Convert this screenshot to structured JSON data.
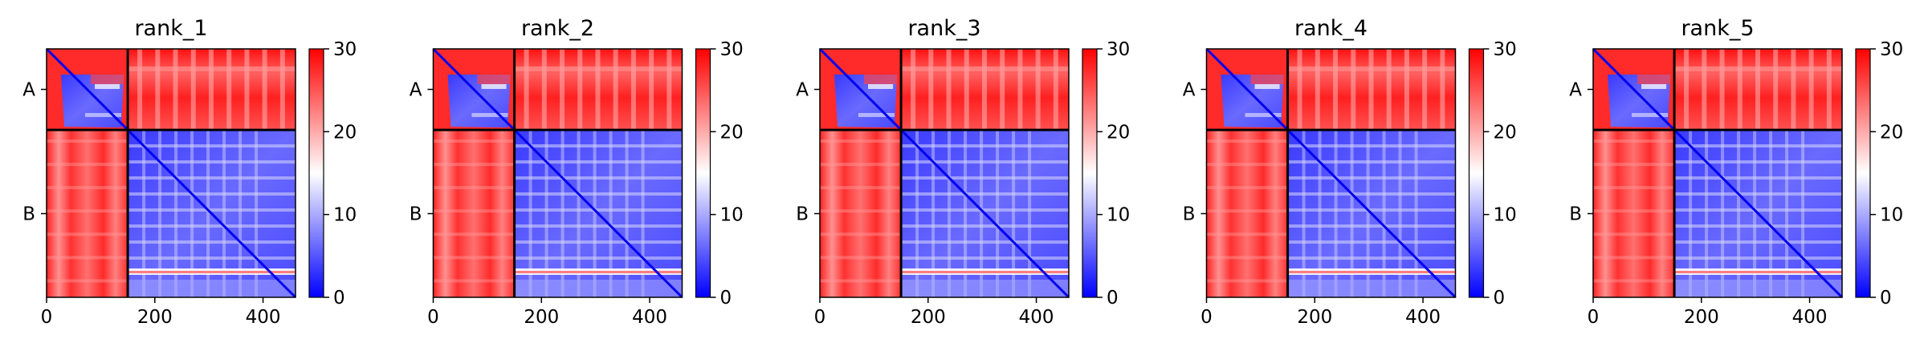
{
  "chart_data": {
    "type": "heatmap",
    "colorbar": {
      "ticks": [
        0,
        10,
        20,
        30
      ],
      "range": [
        0,
        30
      ],
      "colormap": "bwr",
      "colors": {
        "low": "#0000ff",
        "mid": "#ffffff",
        "high": "#ff0000"
      }
    },
    "x_ticks": [
      0,
      200,
      400
    ],
    "x_range": [
      0,
      460
    ],
    "chain_boundary": 150,
    "chain_labels": [
      "A",
      "B"
    ],
    "panels": [
      {
        "title": "rank_1"
      },
      {
        "title": "rank_2"
      },
      {
        "title": "rank_3"
      },
      {
        "title": "rank_4"
      },
      {
        "title": "rank_5"
      }
    ]
  }
}
